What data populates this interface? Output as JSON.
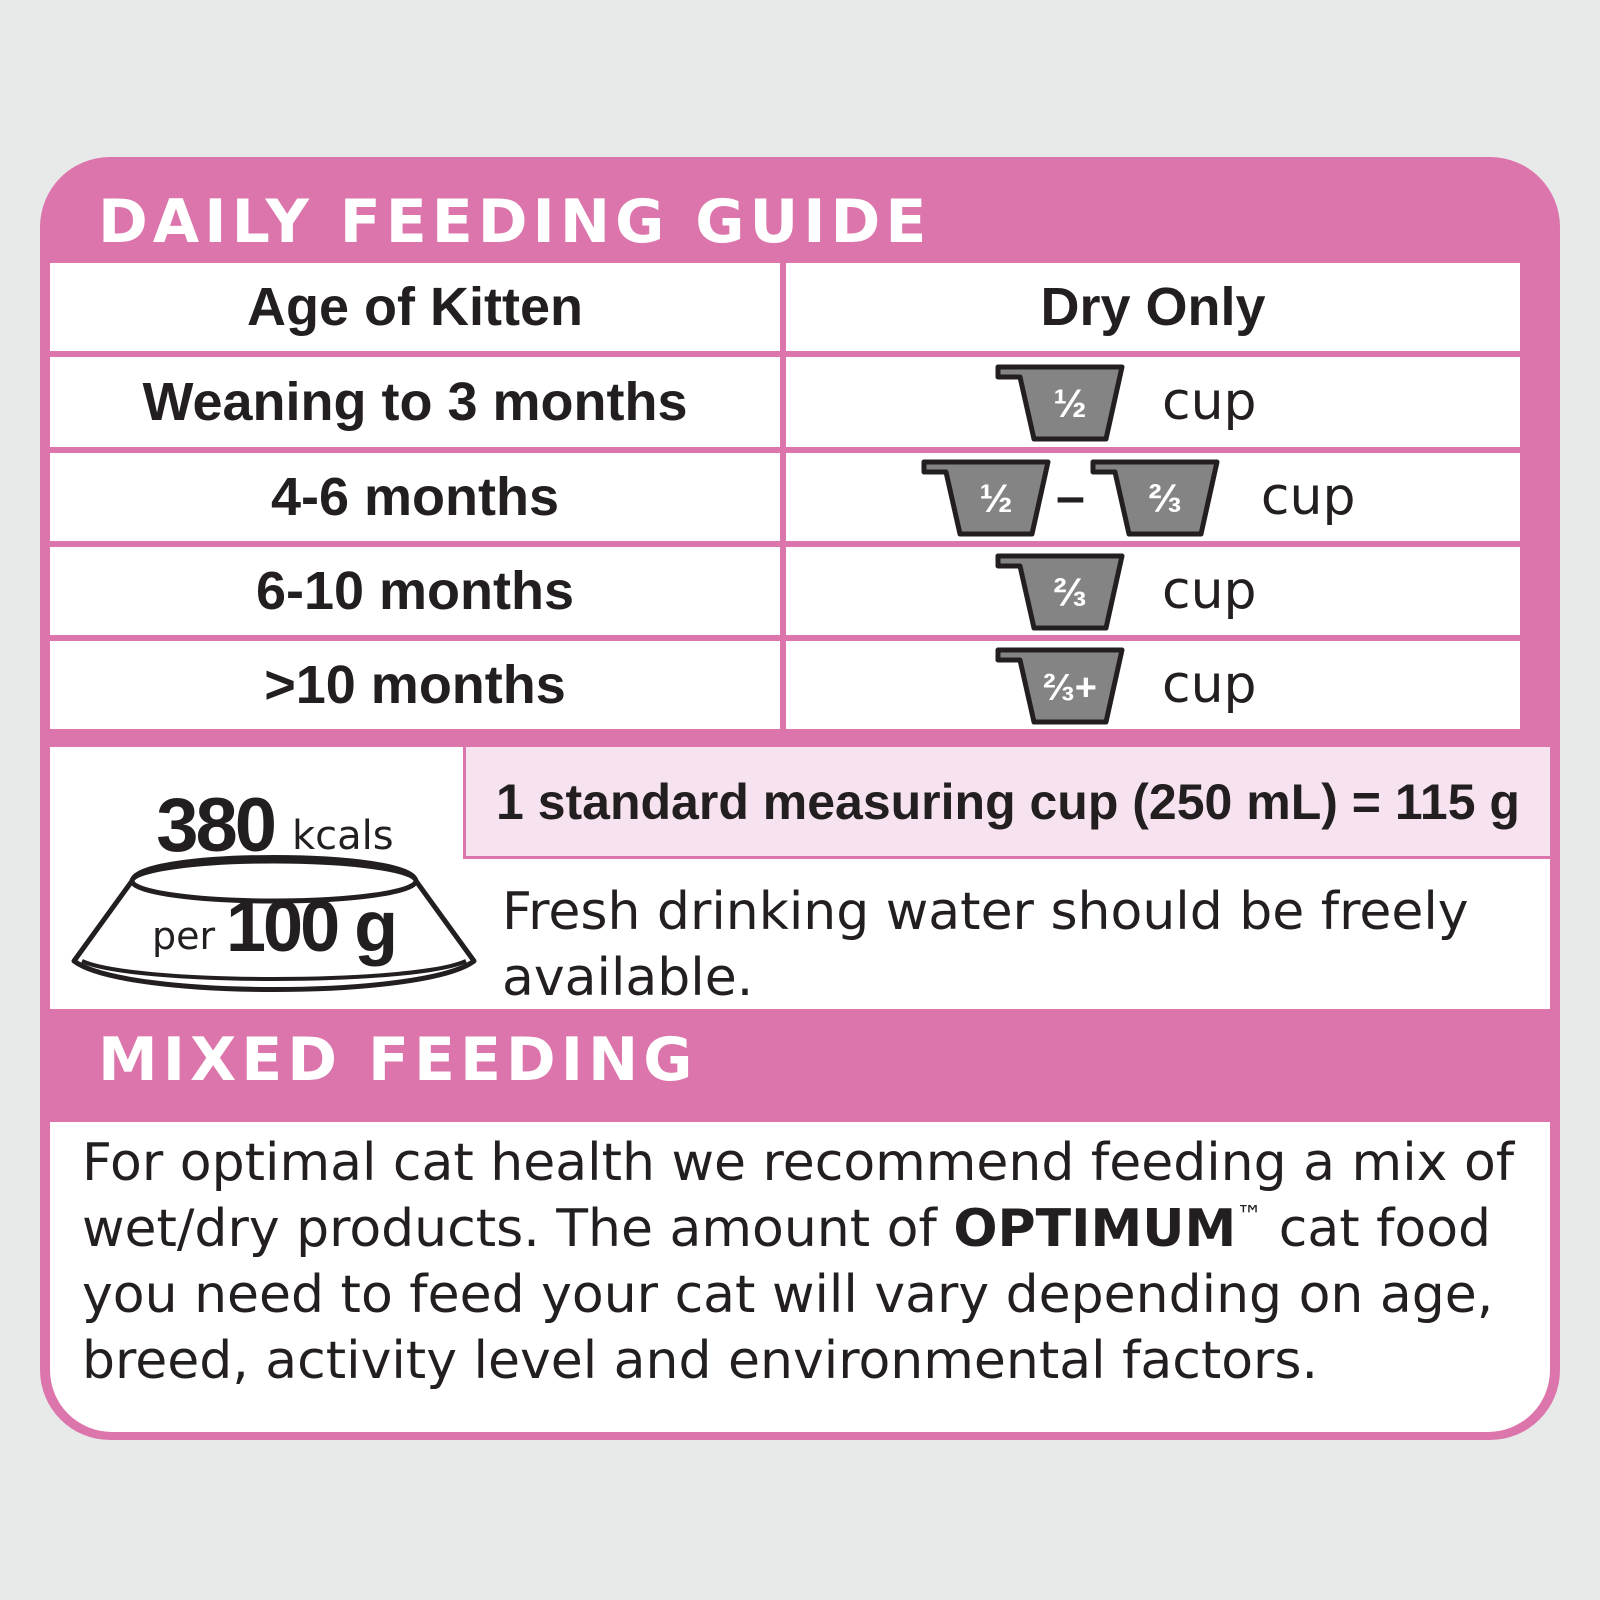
{
  "guide": {
    "title": "DAILY FEEDING GUIDE",
    "col_age": "Age of Kitten",
    "col_dry": "Dry Only",
    "rows": [
      {
        "age": "Weaning to 3 months",
        "cups": [
          "½"
        ],
        "unit": "cup"
      },
      {
        "age": "4-6 months",
        "cups": [
          "½",
          "⅔"
        ],
        "separator": "–",
        "unit": "cup"
      },
      {
        "age": "6-10 months",
        "cups": [
          "⅔"
        ],
        "unit": "cup"
      },
      {
        "age": ">10 months",
        "cups": [
          "⅔+"
        ],
        "unit": "cup"
      }
    ]
  },
  "energy": {
    "value": "380",
    "unit": "kcals",
    "per": "per",
    "per_amount": "100 g"
  },
  "measure_note": "1 standard measuring cup (250 mL) = 115 g",
  "water_note": "Fresh drinking water should be freely available.",
  "mixed": {
    "title": "MIXED FEEDING",
    "text_before": "For optimal cat health we recommend feeding a mix of wet/dry products. The amount of ",
    "brand": "OPTIMUM",
    "tm": "™",
    "text_after": " cat food you need to feed your cat will vary depending on age, breed, activity level and environmental factors."
  },
  "colors": {
    "pink": "#dc75ab",
    "light_pink": "#f7e3ef",
    "cup_gray": "#848484",
    "text": "#231f20",
    "background": "#e8eae9"
  }
}
